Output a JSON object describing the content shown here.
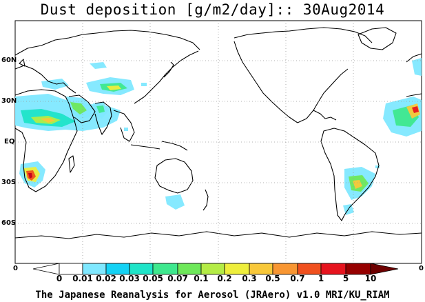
{
  "title": "Dust deposition [g/m2/day]:: 30Aug2014",
  "credit": "The Japanese Reanalysis for Aerosol (JRAero) v1.0 MRI/KU_RIAM",
  "axis": {
    "lat_labels": [
      "60N",
      "30N",
      "EQ",
      "30S",
      "60S"
    ],
    "lon_labels": [
      "0",
      "0"
    ]
  },
  "colorbar": {
    "labels": [
      "0",
      "0.01",
      "0.02",
      "0.03",
      "0.05",
      "0.07",
      "0.1",
      "0.2",
      "0.3",
      "0.5",
      "0.7",
      "1",
      "5",
      "10"
    ],
    "colors": [
      "#ffffff",
      "#ffffff",
      "#7fe8ff",
      "#14d2f5",
      "#1ee4c8",
      "#3ee88e",
      "#6ee85a",
      "#b4ec46",
      "#eeee3c",
      "#f8c83a",
      "#f89632",
      "#f0501e",
      "#e6141e",
      "#c3001e",
      "#960000",
      "#6e0000"
    ]
  },
  "map": {
    "projection": "cylindrical",
    "grid": true,
    "legend_placement": "bottom"
  }
}
